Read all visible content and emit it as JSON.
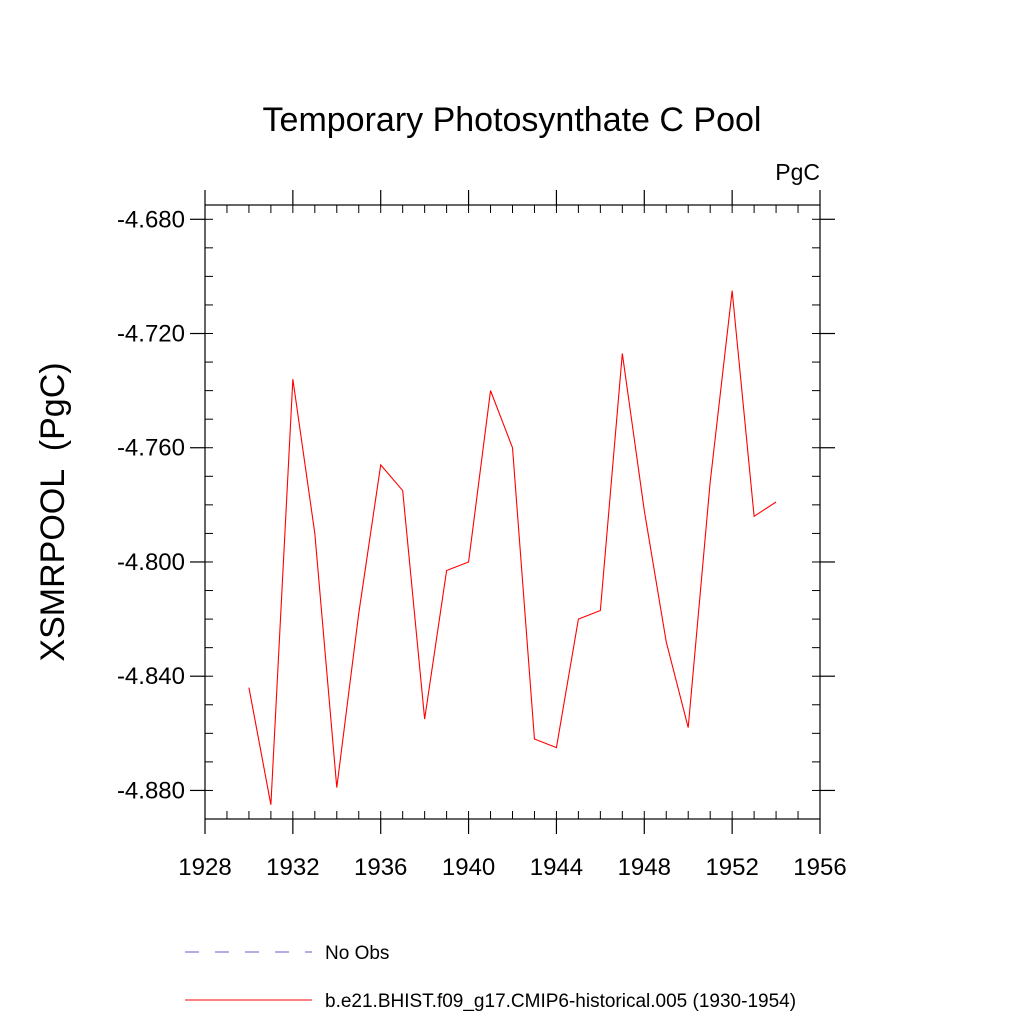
{
  "chart_data": {
    "type": "line",
    "title": "Temporary Photosynthate C Pool",
    "units_label": "PgC",
    "ylabel": "XSMRPOOL  (PgC)",
    "xlabel": "",
    "xlim": [
      1928,
      1956
    ],
    "ylim": [
      -4.89,
      -4.675
    ],
    "x_ticks": [
      1928,
      1932,
      1936,
      1940,
      1944,
      1948,
      1952,
      1956
    ],
    "x_tick_labels": [
      "1928",
      "1932",
      "1936",
      "1940",
      "1944",
      "1948",
      "1952",
      "1956"
    ],
    "x_minor_step": 1,
    "y_ticks": [
      -4.88,
      -4.84,
      -4.8,
      -4.76,
      -4.72,
      -4.68
    ],
    "y_tick_labels": [
      "-4.880",
      "-4.840",
      "-4.800",
      "-4.760",
      "-4.720",
      "-4.680"
    ],
    "y_minor_step": 0.01,
    "grid": false,
    "legend_position": "bottom-left",
    "series": [
      {
        "name": "b.e21.BHIST.f09_g17.CMIP6-historical.005 (1930-1954)",
        "color": "#ff0000",
        "dash": "solid",
        "x": [
          1930,
          1931,
          1932,
          1933,
          1934,
          1935,
          1936,
          1937,
          1938,
          1939,
          1940,
          1941,
          1942,
          1943,
          1944,
          1945,
          1946,
          1947,
          1948,
          1949,
          1950,
          1951,
          1952,
          1953,
          1954
        ],
        "values": [
          -4.844,
          -4.885,
          -4.736,
          -4.79,
          -4.879,
          -4.818,
          -4.766,
          -4.775,
          -4.855,
          -4.803,
          -4.8,
          -4.74,
          -4.76,
          -4.862,
          -4.865,
          -4.82,
          -4.817,
          -4.727,
          -4.782,
          -4.828,
          -4.858,
          -4.772,
          -4.705,
          -4.784,
          -4.779
        ]
      }
    ],
    "legend": [
      {
        "label": "No Obs",
        "color": "#6a5acd",
        "dash": "dashed"
      },
      {
        "label": "b.e21.BHIST.f09_g17.CMIP6-historical.005 (1930-1954)",
        "color": "#ff0000",
        "dash": "solid"
      }
    ]
  }
}
